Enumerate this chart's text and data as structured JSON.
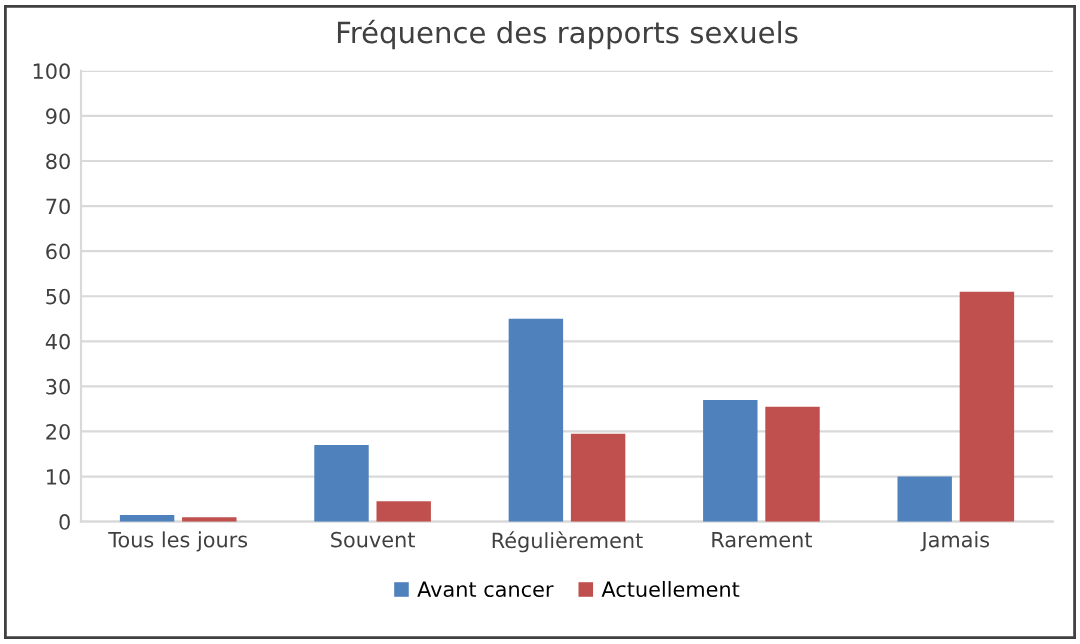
{
  "chart_data": {
    "type": "bar",
    "title": "Fréquence des rapports sexuels",
    "categories": [
      "Tous les jours",
      "Souvent",
      "Régulièrement",
      "Rarement",
      "Jamais"
    ],
    "series": [
      {
        "name": "Avant cancer",
        "color": "#4f81bd",
        "values": [
          1.5,
          17,
          45,
          27,
          10
        ]
      },
      {
        "name": "Actuellement",
        "color": "#c0504d",
        "values": [
          1,
          4.5,
          19.5,
          25.5,
          51
        ]
      }
    ],
    "ylim": [
      0,
      100
    ],
    "yticks": [
      0,
      10,
      20,
      30,
      40,
      50,
      60,
      70,
      80,
      90,
      100
    ],
    "grid": "y",
    "legend": "bottom"
  }
}
